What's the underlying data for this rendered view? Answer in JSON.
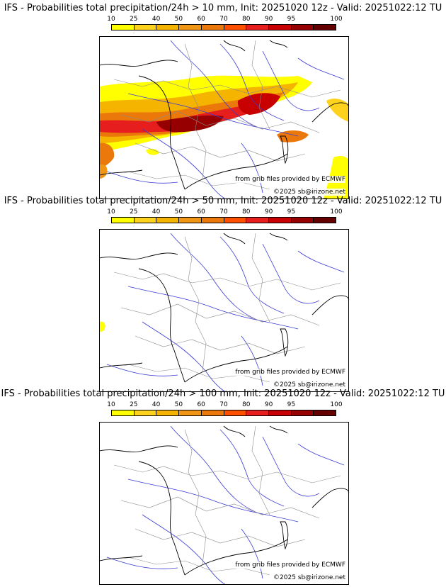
{
  "legend": {
    "ticks": [
      "10",
      "25",
      "40",
      "50",
      "60",
      "70",
      "80",
      "90",
      "95",
      "100"
    ],
    "colors": [
      "#ffff00",
      "#ffd21e",
      "#f5b400",
      "#f09614",
      "#eb780a",
      "#ff5000",
      "#e61e1e",
      "#c80000",
      "#960000",
      "#640000"
    ]
  },
  "panels": [
    {
      "title": "IFS - Probabilities total precipitation/24h > 10 mm, Init: 20251020 12z - Valid: 20251022:12 TU",
      "credit": "from grib files provided by ECMWF",
      "copyright": "©2025 sb@irizone.net"
    },
    {
      "title": "IFS - Probabilities total precipitation/24h > 50 mm, Init: 20251020 12z - Valid: 20251022:12 TU",
      "credit": "from grib files provided by ECMWF",
      "copyright": "©2025 sb@irizone.net"
    },
    {
      "title": "IFS - Probabilities total precipitation/24h > 100 mm, Init: 20251020 12z - Valid: 20251022:12 TU",
      "credit": "from grib files provided by ECMWF",
      "copyright": "©2025 sb@irizone.net"
    }
  ]
}
